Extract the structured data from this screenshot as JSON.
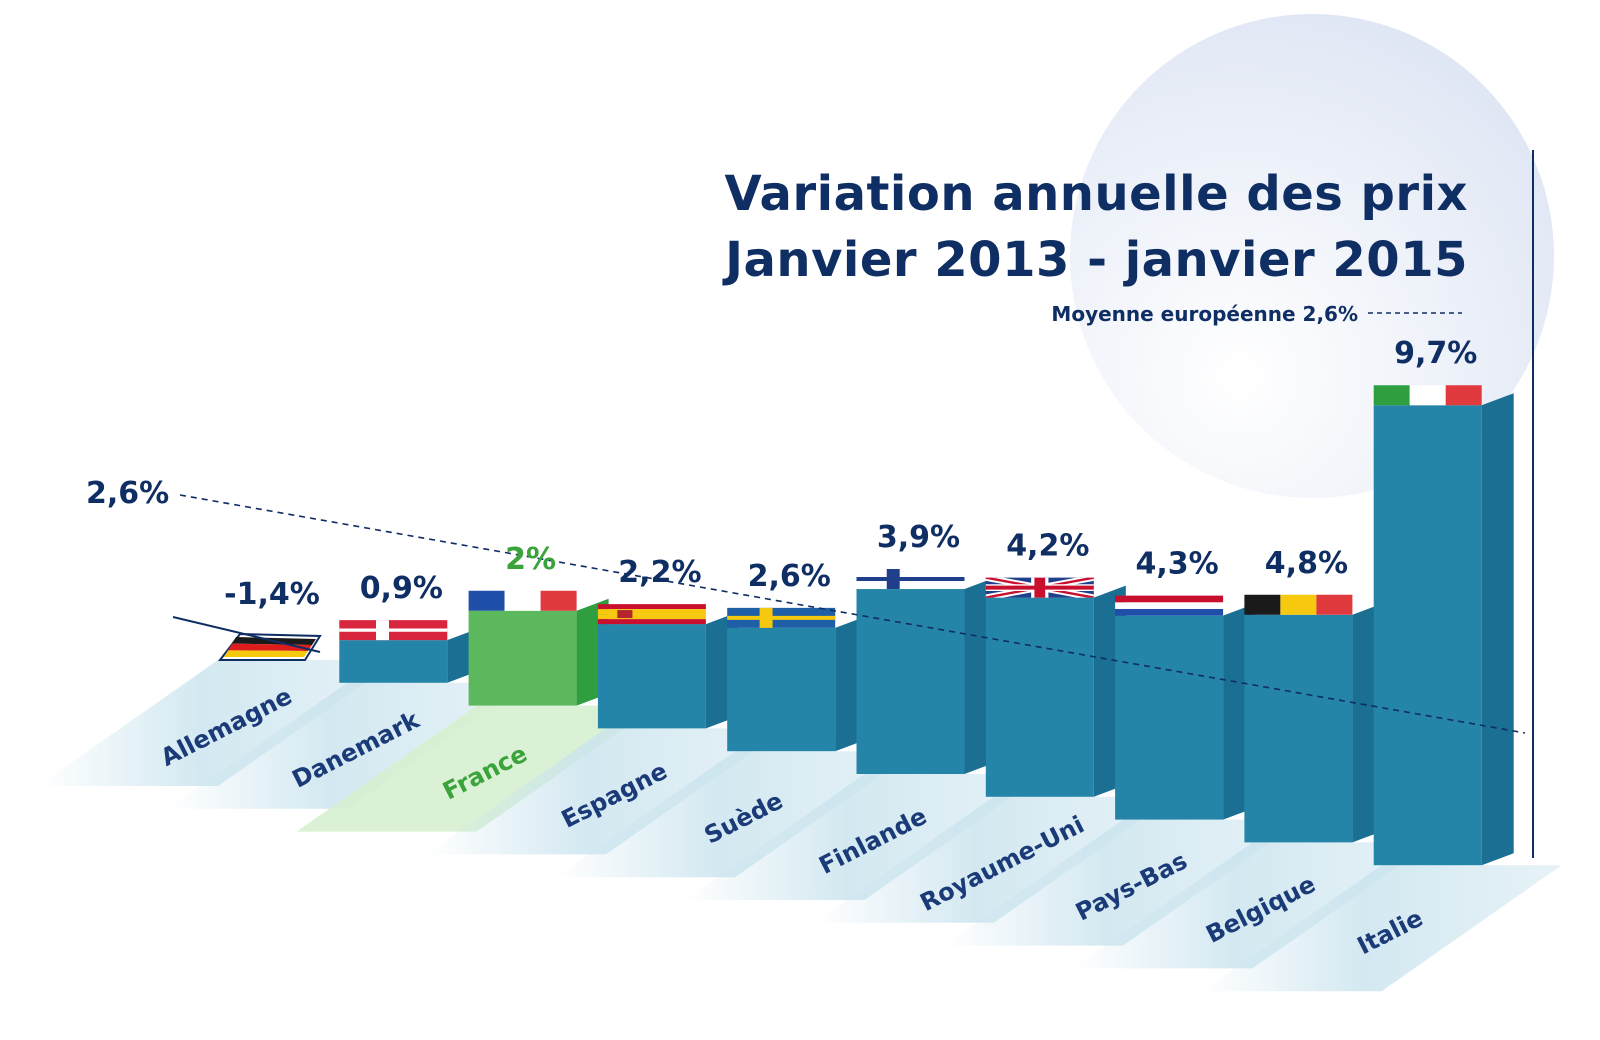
{
  "title": {
    "line1": "Variation annuelle des prix",
    "line2": "Janvier 2013 - janvier 2015"
  },
  "average": {
    "note": "Moyenne européenne 2,6%",
    "label": "2,6%",
    "value": 2.6
  },
  "colors": {
    "title": "#0f2e63",
    "bar_front": "#2585a8",
    "bar_side": "#1a6f93",
    "highlight_front": "#5cb85c",
    "highlight_side": "#2e9e3e",
    "highlight_text": "#3aa33a",
    "label_band": "#c9e3ee",
    "circle": "#dfe6f4"
  },
  "chart_data": {
    "type": "bar",
    "title": "Variation annuelle des prix Janvier 2013 - janvier 2015",
    "categories": [
      "Allemagne",
      "Danemark",
      "France",
      "Espagne",
      "Suède",
      "Finlande",
      "Royaume-Uni",
      "Pays-Bas",
      "Belgique",
      "Italie"
    ],
    "values": [
      -1.4,
      0.9,
      2,
      2.2,
      2.6,
      3.9,
      4.2,
      4.3,
      4.8,
      9.7
    ],
    "value_labels": [
      "-1,4%",
      "0,9%",
      "2%",
      "2,2%",
      "2,6%",
      "3,9%",
      "4,2%",
      "4,3%",
      "4,8%",
      "9,7%"
    ],
    "flags": [
      "germany-flag",
      "denmark-flag",
      "france-flag",
      "spain-flag",
      "sweden-flag",
      "finland-flag",
      "uk-flag",
      "netherlands-flag",
      "belgium-flag",
      "italy-flag"
    ],
    "highlight": "France",
    "reference_line": {
      "label": "Moyenne européenne 2,6%",
      "value": 2.6
    },
    "grid": false,
    "legend": "none"
  }
}
